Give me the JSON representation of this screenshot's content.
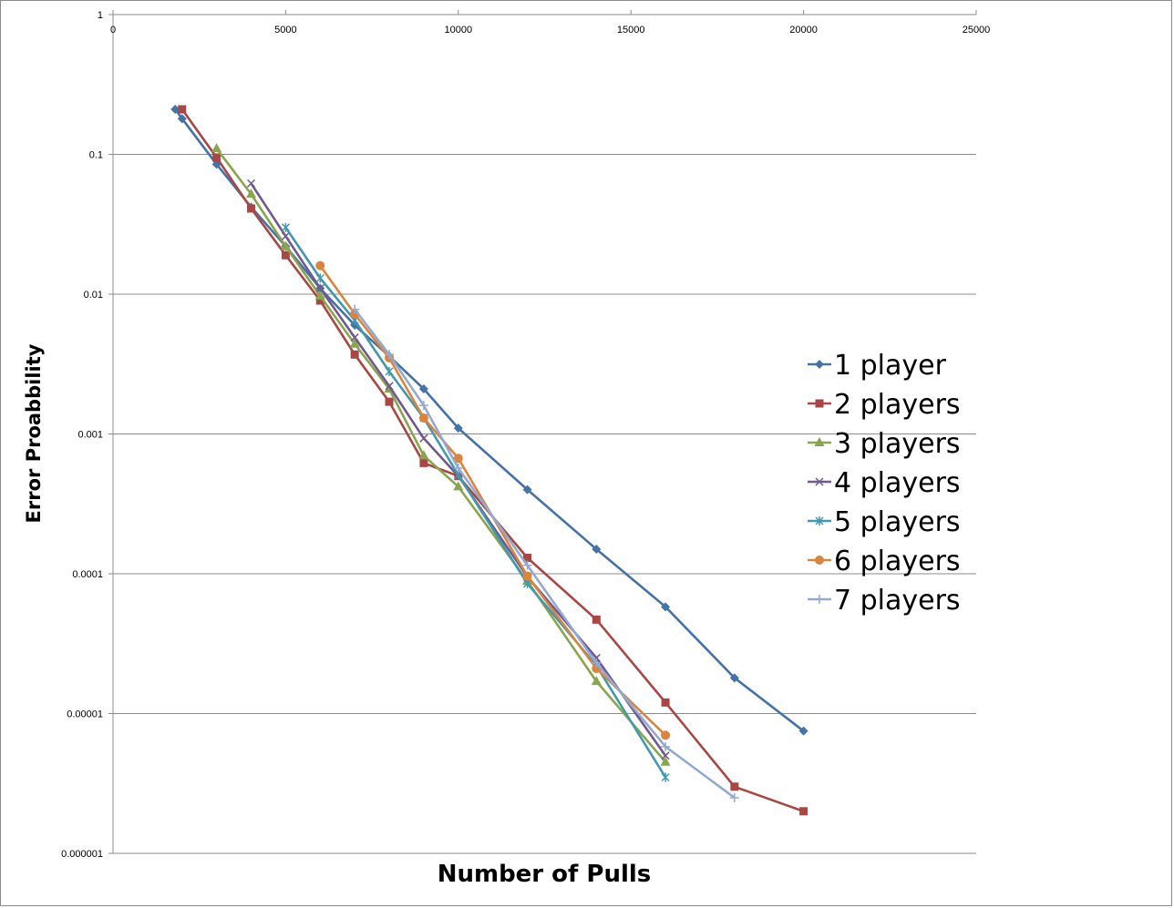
{
  "chart_data": {
    "type": "line",
    "title": "",
    "xlabel": "Number of Pulls",
    "ylabel": "Error Proabbility",
    "xlim": [
      0,
      25000
    ],
    "ylim": [
      1e-06,
      1
    ],
    "y_scale": "log",
    "x_axis_position": "top",
    "x_ticks": [
      "0",
      "5000",
      "10000",
      "15000",
      "20000",
      "25000"
    ],
    "x_tick_values": [
      0,
      5000,
      10000,
      15000,
      20000,
      25000
    ],
    "y_ticks": [
      "1",
      "0.1",
      "0.01",
      "0.001",
      "0.0001",
      "0.00001",
      "0.000001"
    ],
    "y_tick_values": [
      1,
      0.1,
      0.01,
      0.001,
      0.0001,
      1e-05,
      1e-06
    ],
    "grid": "horizontal",
    "legend_position": "right",
    "series": [
      {
        "name": "1 player",
        "color": "#4572A7",
        "marker": "diamond",
        "x": [
          1800,
          2000,
          3000,
          4000,
          5000,
          6000,
          7000,
          8000,
          9000,
          10000,
          12000,
          14000,
          16000,
          18000,
          20000
        ],
        "y": [
          0.21,
          0.18,
          0.085,
          0.042,
          0.022,
          0.011,
          0.006,
          0.0036,
          0.0021,
          0.0011,
          0.0004,
          0.00015,
          5.8e-05,
          1.8e-05,
          7.5e-06
        ]
      },
      {
        "name": "2 players",
        "color": "#AA4643",
        "marker": "square",
        "x": [
          2000,
          3000,
          4000,
          5000,
          6000,
          7000,
          8000,
          9000,
          10000,
          12000,
          14000,
          16000,
          18000,
          20000
        ],
        "y": [
          0.21,
          0.095,
          0.041,
          0.019,
          0.009,
          0.0037,
          0.0017,
          0.00062,
          0.0005,
          0.00013,
          4.7e-05,
          1.2e-05,
          3e-06,
          2e-06
        ]
      },
      {
        "name": "3 players",
        "color": "#89A54E",
        "marker": "triangle",
        "x": [
          3000,
          4000,
          5000,
          6000,
          7000,
          8000,
          9000,
          10000,
          12000,
          14000,
          16000
        ],
        "y": [
          0.11,
          0.052,
          0.022,
          0.0097,
          0.0044,
          0.0021,
          0.0007,
          0.00042,
          8.87e-05,
          1.7e-05,
          4.5e-06
        ]
      },
      {
        "name": "4 players",
        "color": "#71588F",
        "marker": "x",
        "x": [
          4000,
          5000,
          6000,
          7000,
          8000,
          9000,
          10000,
          12000,
          14000,
          16000
        ],
        "y": [
          0.062,
          0.026,
          0.011,
          0.0049,
          0.0022,
          0.00093,
          0.0005,
          9.55e-05,
          2.5e-05,
          5e-06
        ]
      },
      {
        "name": "5 players",
        "color": "#4198AF",
        "marker": "star",
        "x": [
          5000,
          6000,
          7000,
          8000,
          9000,
          10000,
          12000,
          14000,
          16000
        ],
        "y": [
          0.03,
          0.013,
          0.0065,
          0.0028,
          0.0013,
          0.00051,
          8.5e-05,
          2.2e-05,
          3.5e-06
        ]
      },
      {
        "name": "6 players",
        "color": "#DB843D",
        "marker": "circle",
        "x": [
          6000,
          7000,
          8000,
          9000,
          10000,
          12000,
          14000,
          16000
        ],
        "y": [
          0.016,
          0.0072,
          0.0035,
          0.0013,
          0.00067,
          9.63e-05,
          2.1e-05,
          7e-06
        ]
      },
      {
        "name": "7 players",
        "color": "#93A9CF",
        "marker": "plus",
        "x": [
          7000,
          8000,
          9000,
          10000,
          12000,
          14000,
          16000,
          18000
        ],
        "y": [
          0.0078,
          0.0037,
          0.0016,
          0.00057,
          0.000115,
          2.3e-05,
          5.8e-06,
          2.5e-06
        ]
      }
    ]
  }
}
